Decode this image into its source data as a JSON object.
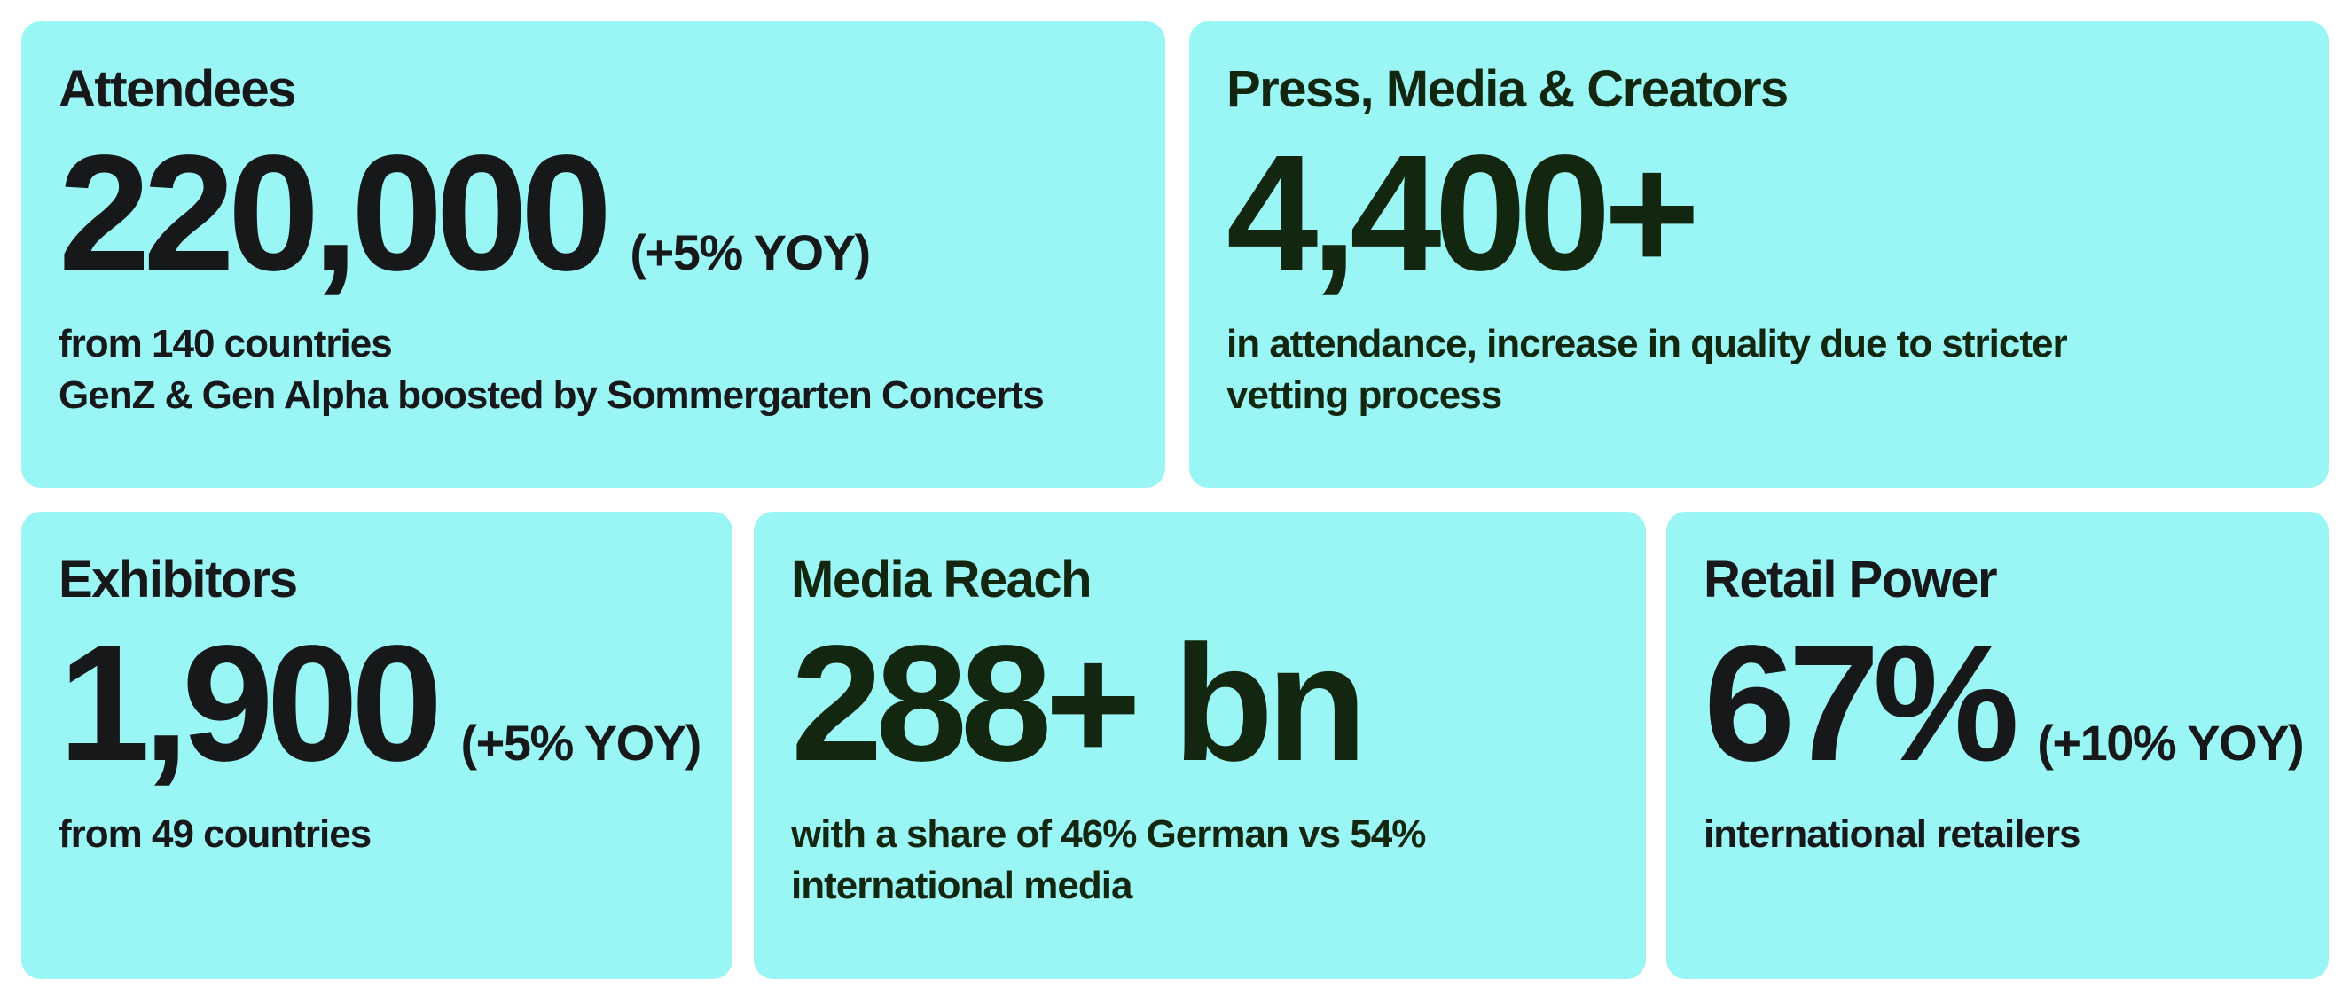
{
  "cards": [
    {
      "title": "Attendees",
      "value": "220,000",
      "change": "(+5% YOY)",
      "lines": [
        "from 140 countries",
        "GenZ & Gen Alpha boosted by Sommergarten Concerts"
      ]
    },
    {
      "title": "Press, Media & Creators",
      "value": "4,400+",
      "lines": [
        "in attendance, increase in quality due to stricter",
        "vetting process"
      ]
    },
    {
      "title": "Exhibitors",
      "value": "1,900",
      "change": "(+5% YOY)",
      "lines": [
        "from 49 countries"
      ]
    },
    {
      "title": "Media Reach",
      "value": "288+ bn",
      "lines": [
        "with a share of 46% German vs 54%",
        "international media"
      ]
    },
    {
      "title": "Retail Power",
      "value": "67%",
      "change": "(+10% YOY)",
      "lines": [
        "international retailers"
      ]
    }
  ]
}
